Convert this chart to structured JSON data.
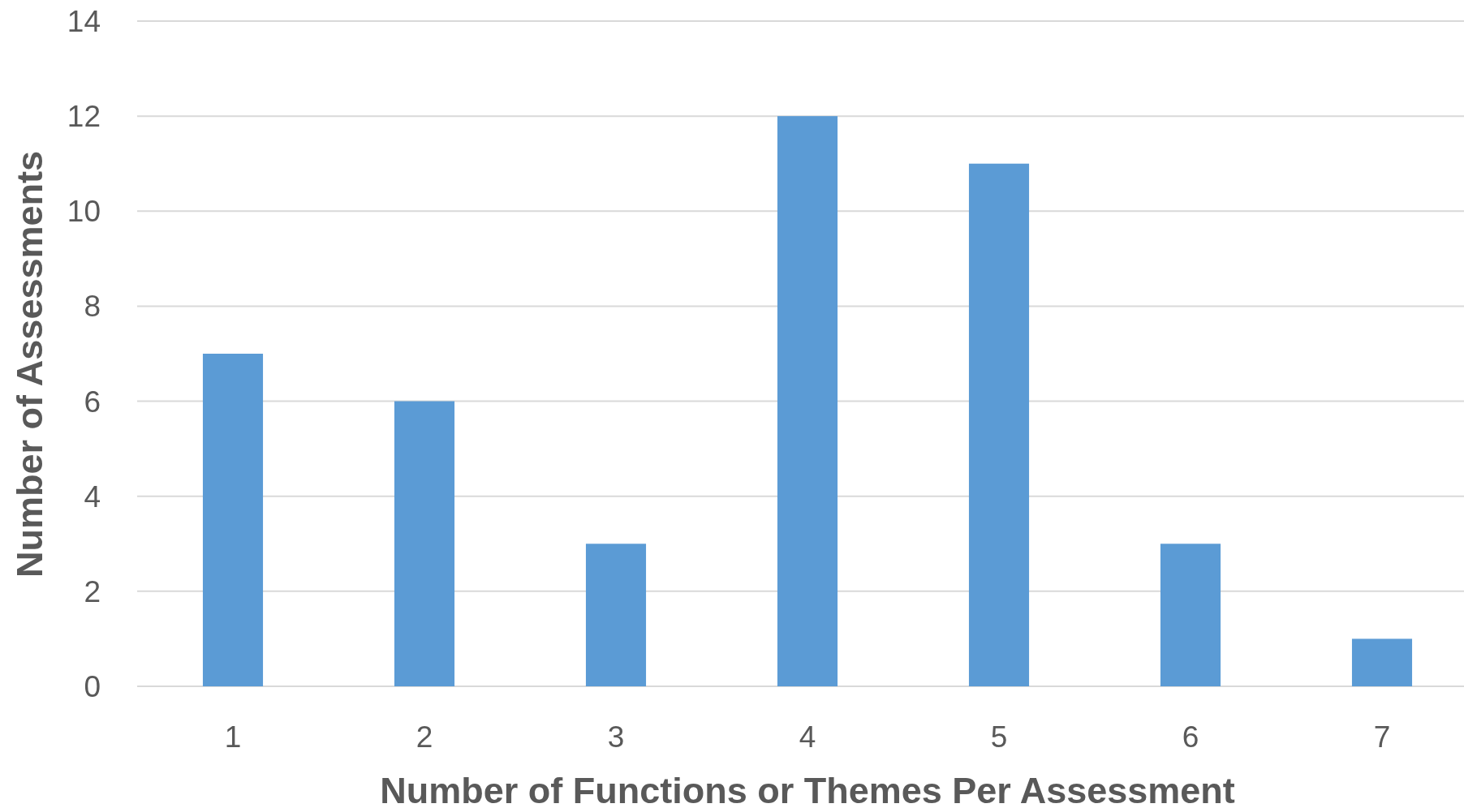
{
  "chart_data": {
    "type": "bar",
    "xlabel": "Number of Functions or Themes Per Assessment",
    "ylabel": "Number of Assessments",
    "categories": [
      "1",
      "2",
      "3",
      "4",
      "5",
      "6",
      "7"
    ],
    "values": [
      7,
      6,
      3,
      12,
      11,
      3,
      1
    ],
    "color": "#5b9bd5",
    "ylim": [
      0,
      14
    ],
    "yticks": [
      0,
      2,
      4,
      6,
      8,
      10,
      12,
      14
    ],
    "grid": "y"
  }
}
